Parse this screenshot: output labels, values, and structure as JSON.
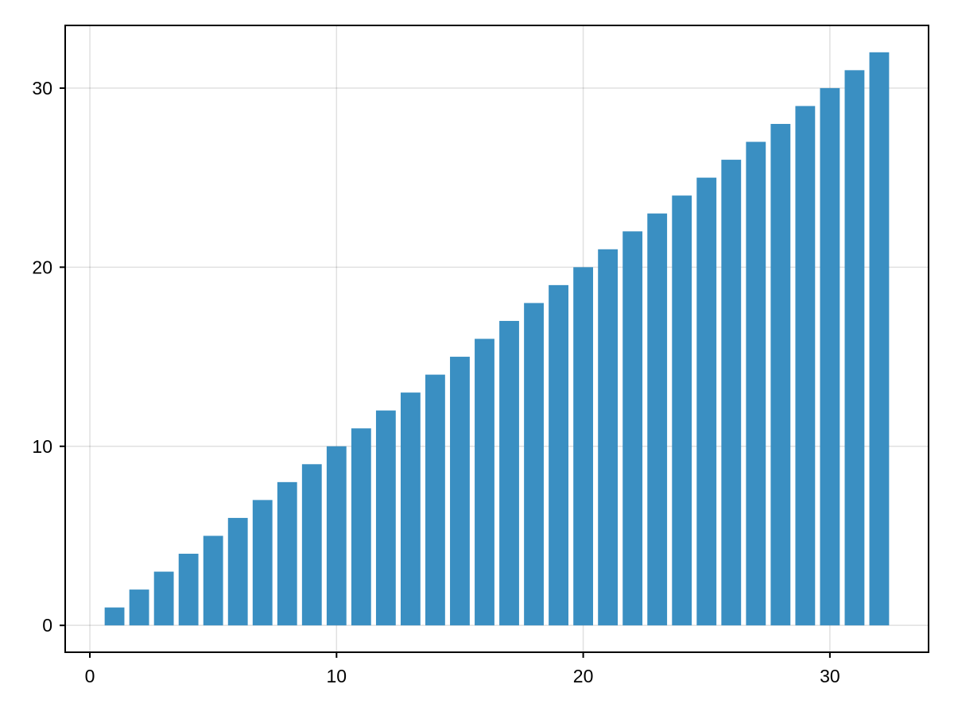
{
  "chart_data": {
    "type": "bar",
    "title": "",
    "xlabel": "",
    "ylabel": "",
    "x": [
      1,
      2,
      3,
      4,
      5,
      6,
      7,
      8,
      9,
      10,
      11,
      12,
      13,
      14,
      15,
      16,
      17,
      18,
      19,
      20,
      21,
      22,
      23,
      24,
      25,
      26,
      27,
      28,
      29,
      30,
      31,
      32
    ],
    "values": [
      1,
      2,
      3,
      4,
      5,
      6,
      7,
      8,
      9,
      10,
      11,
      12,
      13,
      14,
      15,
      16,
      17,
      18,
      19,
      20,
      21,
      22,
      23,
      24,
      25,
      26,
      27,
      28,
      29,
      30,
      31,
      32
    ],
    "xlim": [
      -1,
      34
    ],
    "ylim": [
      -1.5,
      33.5
    ],
    "xticks": [
      0,
      10,
      20,
      30
    ],
    "yticks": [
      0,
      10,
      20,
      30
    ],
    "xtick_labels": [
      "0",
      "10",
      "20",
      "30"
    ],
    "ytick_labels": [
      "0",
      "10",
      "20",
      "30"
    ],
    "grid": true,
    "bar_color": "#3a8fc2"
  }
}
